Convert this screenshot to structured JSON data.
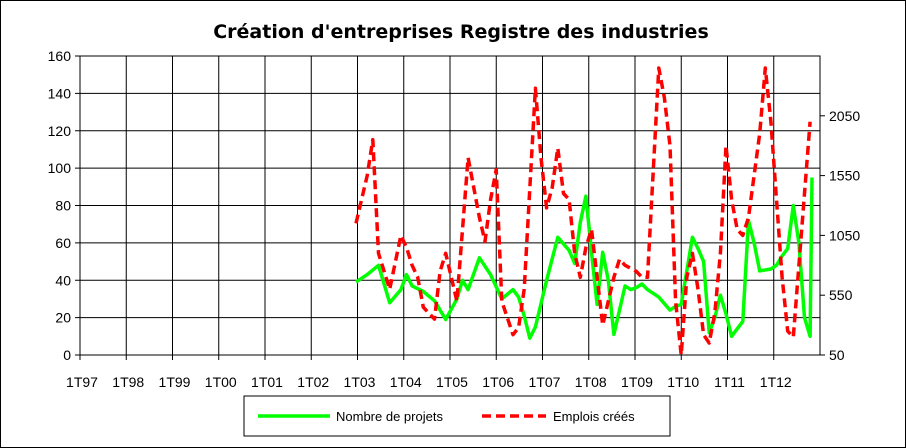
{
  "chart_data": {
    "type": "line",
    "title": "Création d'entreprises Registre des industries",
    "x_tick_labels": [
      "1T97",
      "1T98",
      "1T99",
      "1T00",
      "1T01",
      "1T02",
      "1T03",
      "1T04",
      "1T05",
      "1T06",
      "1T07",
      "1T08",
      "1T09",
      "1T10",
      "1T11",
      "1T12"
    ],
    "x_range_quarters": [
      0,
      64
    ],
    "y_left": {
      "min": 0,
      "max": 160,
      "ticks": [
        0,
        20,
        40,
        60,
        80,
        100,
        120,
        140,
        160
      ]
    },
    "y_right": {
      "min": 50,
      "max": 2550,
      "ticks": [
        50,
        550,
        1050,
        1550,
        2050
      ]
    },
    "grid": "on",
    "legend_position": "bottom",
    "series": [
      {
        "name": "Nombre de projets",
        "axis": "left",
        "color": "#00ff00",
        "style": "solid",
        "x_start_quarter": 24,
        "values": [
          39,
          43,
          48,
          28,
          35,
          43,
          37,
          34,
          29,
          19,
          30,
          40,
          35,
          52,
          43,
          30,
          35,
          31,
          21,
          9,
          15,
          40,
          63,
          56,
          49,
          71,
          85,
          55,
          27,
          55,
          40,
          11,
          37,
          35,
          36,
          38,
          35,
          31,
          24,
          26,
          27,
          63,
          57,
          50,
          12,
          20,
          32,
          22,
          10,
          14,
          18,
          72,
          60,
          45,
          46,
          48,
          53,
          57,
          80,
          60,
          20,
          10,
          95
        ],
        "values_x_quarter": [
          24,
          25,
          26,
          27,
          28,
          28.5,
          29,
          30,
          31,
          32,
          33,
          33.5,
          34,
          35,
          36,
          37,
          38,
          38.5,
          39,
          39.5,
          40,
          41,
          42,
          43,
          43.5,
          44,
          44.5,
          45,
          45.5,
          46,
          46.5,
          47,
          48,
          48.5,
          49,
          49.5,
          50,
          51,
          52,
          52.5,
          53,
          54,
          54.5,
          55,
          55.5,
          56,
          56.5,
          57,
          57.5,
          58,
          58.5,
          59,
          59.5,
          60,
          61,
          61.5,
          62,
          62.5,
          63,
          63.5,
          64,
          64.5,
          65.5
        ]
      },
      {
        "name": "Emplois créés",
        "axis": "right",
        "color": "#ff0000",
        "style": "dashed",
        "values": [
          1150,
          1550,
          1850,
          900,
          600,
          1050,
          950,
          800,
          700,
          450,
          350,
          750,
          900,
          500,
          1100,
          1700,
          1200,
          1000,
          1350,
          1600,
          500,
          220,
          280,
          600,
          2280,
          1700,
          1280,
          1450,
          1780,
          1400,
          1350,
          900,
          700,
          950,
          1100,
          300,
          500,
          700,
          850,
          800,
          750,
          700,
          700,
          2450,
          2200,
          1800,
          500,
          50,
          700,
          900,
          600,
          220,
          150,
          400,
          900,
          1800,
          1350,
          1100,
          1050,
          1200,
          1900,
          2450,
          2000,
          700,
          250,
          200,
          2000
        ],
        "values_x_quarter": [
          24,
          25,
          25.5,
          26,
          27,
          28,
          28.5,
          29,
          29.5,
          30,
          31,
          31.5,
          32,
          33,
          33.5,
          34,
          35,
          35.5,
          36,
          36.5,
          37,
          38,
          38.5,
          39,
          40,
          40.5,
          41,
          41.5,
          42,
          42.5,
          43,
          43.5,
          44,
          44.5,
          45,
          46,
          46.5,
          47,
          47.5,
          48,
          49,
          49.5,
          50,
          51,
          51.5,
          52,
          52.5,
          53,
          53.5,
          54,
          54.5,
          55,
          55.5,
          56,
          56.5,
          57,
          57.5,
          58,
          58.5,
          59,
          60,
          60.5,
          61,
          62,
          62.5,
          63,
          64.5
        ]
      }
    ],
    "legend": [
      {
        "label": "Nombre de projets",
        "color": "#00ff00",
        "style": "solid"
      },
      {
        "label": "Emplois créés",
        "color": "#ff0000",
        "style": "dashed"
      }
    ]
  }
}
